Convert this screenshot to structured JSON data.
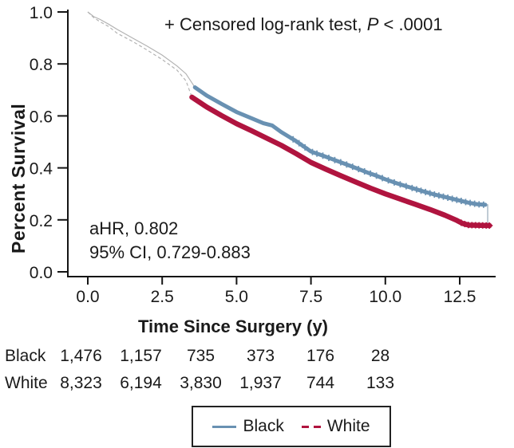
{
  "chart_data": {
    "type": "line",
    "subtype": "kaplan-meier-survival",
    "xlabel": "Time Since Surgery (y)",
    "ylabel": "Percent Survival",
    "xlim": [
      0,
      13.7
    ],
    "ylim": [
      0,
      1.0
    ],
    "xtick_values": [
      0,
      2.5,
      5,
      7.5,
      10,
      12.5
    ],
    "xtick_labels": [
      "0.0",
      "2.5",
      "5.0",
      "7.5",
      "10.0",
      "12.5"
    ],
    "ytick_values": [
      0,
      0.2,
      0.4,
      0.6,
      0.8,
      1
    ],
    "ytick_labels": [
      "0.0",
      "0.2",
      "0.4",
      "0.6",
      "0.8",
      "1.0"
    ],
    "grid": false,
    "legend_position": "bottom-center",
    "annotations": {
      "censored": {
        "prefix": "+ Censored log-rank test, ",
        "italic": "P",
        "suffix": " < .0001"
      },
      "stats_line1": "aHR, 0.802",
      "stats_line2": "95% CI, 0.729-0.883"
    },
    "series": [
      {
        "name": "Black",
        "color": "#6991b2",
        "line_style": "solid",
        "lead_in": [
          [
            0,
            1.0
          ],
          [
            0.2,
            0.982
          ],
          [
            0.4,
            0.972
          ],
          [
            0.7,
            0.953
          ],
          [
            1.0,
            0.932
          ],
          [
            1.5,
            0.9
          ],
          [
            2.0,
            0.868
          ],
          [
            2.5,
            0.834
          ],
          [
            3.0,
            0.792
          ],
          [
            3.3,
            0.762
          ],
          [
            3.6,
            0.71
          ]
        ],
        "points": [
          [
            3.6,
            0.71
          ],
          [
            4.0,
            0.678
          ],
          [
            4.5,
            0.646
          ],
          [
            5.0,
            0.615
          ],
          [
            5.5,
            0.591
          ],
          [
            5.9,
            0.572
          ],
          [
            6.2,
            0.563
          ],
          [
            6.5,
            0.538
          ],
          [
            7.0,
            0.503
          ],
          [
            7.5,
            0.463
          ],
          [
            7.9,
            0.447
          ],
          [
            8.3,
            0.43
          ],
          [
            8.7,
            0.413
          ],
          [
            9.0,
            0.4
          ],
          [
            9.4,
            0.382
          ],
          [
            9.7,
            0.37
          ],
          [
            10.0,
            0.356
          ],
          [
            10.4,
            0.34
          ],
          [
            10.8,
            0.326
          ],
          [
            11.2,
            0.312
          ],
          [
            11.6,
            0.299
          ],
          [
            12.0,
            0.288
          ],
          [
            12.4,
            0.277
          ],
          [
            12.8,
            0.266
          ],
          [
            13.1,
            0.26
          ],
          [
            13.36,
            0.258
          ]
        ],
        "tail": [
          [
            13.36,
            0.258
          ],
          [
            13.44,
            0.258
          ],
          [
            13.44,
            0.188
          ]
        ],
        "censor_t": [
          6.9,
          7.1,
          7.3,
          7.55,
          7.7,
          7.9,
          8.1,
          8.3,
          8.5,
          8.7,
          8.9,
          9.1,
          9.3,
          9.5,
          9.7,
          9.9,
          10.1,
          10.3,
          10.5,
          10.7,
          10.9,
          11.05,
          11.2,
          11.35,
          11.5,
          11.65,
          11.8,
          11.95,
          12.1,
          12.25,
          12.4,
          12.55,
          12.7,
          12.85,
          13.0,
          13.15,
          13.3
        ]
      },
      {
        "name": "White",
        "color": "#b0143f",
        "line_style": "dashed",
        "lead_in": [
          [
            0,
            1.0
          ],
          [
            0.2,
            0.978
          ],
          [
            0.4,
            0.963
          ],
          [
            0.7,
            0.944
          ],
          [
            1.0,
            0.917
          ],
          [
            1.5,
            0.887
          ],
          [
            2.0,
            0.853
          ],
          [
            2.5,
            0.817
          ],
          [
            3.0,
            0.776
          ],
          [
            3.3,
            0.735
          ],
          [
            3.5,
            0.672
          ]
        ],
        "points": [
          [
            3.5,
            0.672
          ],
          [
            4.0,
            0.634
          ],
          [
            4.5,
            0.601
          ],
          [
            5.0,
            0.57
          ],
          [
            5.5,
            0.543
          ],
          [
            6.0,
            0.515
          ],
          [
            6.5,
            0.487
          ],
          [
            7.0,
            0.455
          ],
          [
            7.5,
            0.421
          ],
          [
            8.0,
            0.395
          ],
          [
            8.5,
            0.37
          ],
          [
            9.0,
            0.346
          ],
          [
            9.5,
            0.322
          ],
          [
            10.0,
            0.3
          ],
          [
            10.5,
            0.28
          ],
          [
            11.0,
            0.26
          ],
          [
            11.5,
            0.24
          ],
          [
            12.0,
            0.218
          ],
          [
            12.4,
            0.198
          ],
          [
            12.6,
            0.186
          ],
          [
            12.8,
            0.18
          ],
          [
            13.5,
            0.178
          ]
        ],
        "censor_t": [
          12.55,
          12.67,
          12.79,
          12.91,
          13.03,
          13.15,
          13.27,
          13.39,
          13.5
        ]
      }
    ],
    "risk_table": {
      "rows": [
        {
          "label": "Black",
          "counts": [
            "1,476",
            "1,157",
            "735",
            "373",
            "176",
            "28"
          ]
        },
        {
          "label": "White",
          "counts": [
            "8,323",
            "6,194",
            "3,830",
            "1,937",
            "744",
            "133"
          ]
        }
      ]
    }
  }
}
